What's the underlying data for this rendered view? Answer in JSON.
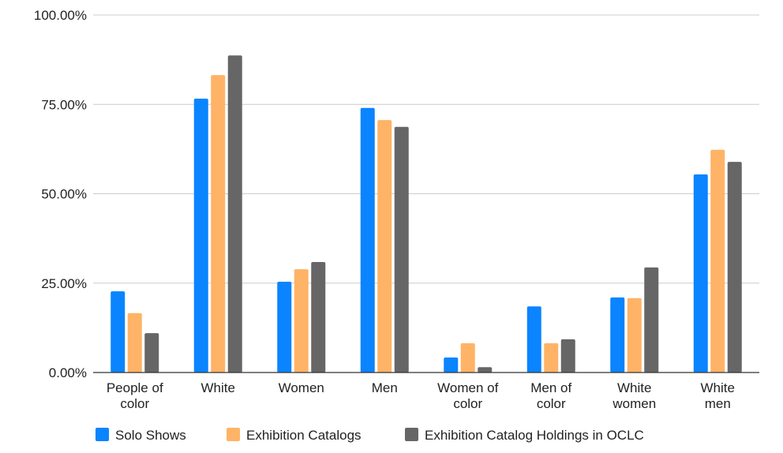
{
  "chart_data": {
    "type": "bar",
    "title": "",
    "xlabel": "",
    "ylabel": "",
    "ylim": [
      0,
      100
    ],
    "yticks": [
      "0.00%",
      "25.00%",
      "50.00%",
      "75.00%",
      "100.00%"
    ],
    "ytick_values": [
      0,
      25,
      50,
      75,
      100
    ],
    "grid": true,
    "legend_position": "bottom",
    "categories": [
      [
        "People of",
        "color"
      ],
      [
        "White"
      ],
      [
        "Women"
      ],
      [
        "Men"
      ],
      [
        "Women of",
        "color"
      ],
      [
        "Men of",
        "color"
      ],
      [
        "White",
        "women"
      ],
      [
        "White",
        "men"
      ]
    ],
    "series": [
      {
        "name": "Solo Shows",
        "color": "#0a84ff",
        "values": [
          22.7,
          76.6,
          25.4,
          74.0,
          4.2,
          18.5,
          21.0,
          55.4
        ]
      },
      {
        "name": "Exhibition Catalogs",
        "color": "#ffb366",
        "values": [
          16.6,
          83.2,
          28.9,
          70.6,
          8.2,
          8.2,
          20.8,
          62.3
        ]
      },
      {
        "name": "Exhibition Catalog Holdings in OCLC",
        "color": "#666666",
        "values": [
          11.0,
          88.7,
          30.9,
          68.7,
          1.5,
          9.3,
          29.4,
          58.9
        ]
      }
    ]
  }
}
